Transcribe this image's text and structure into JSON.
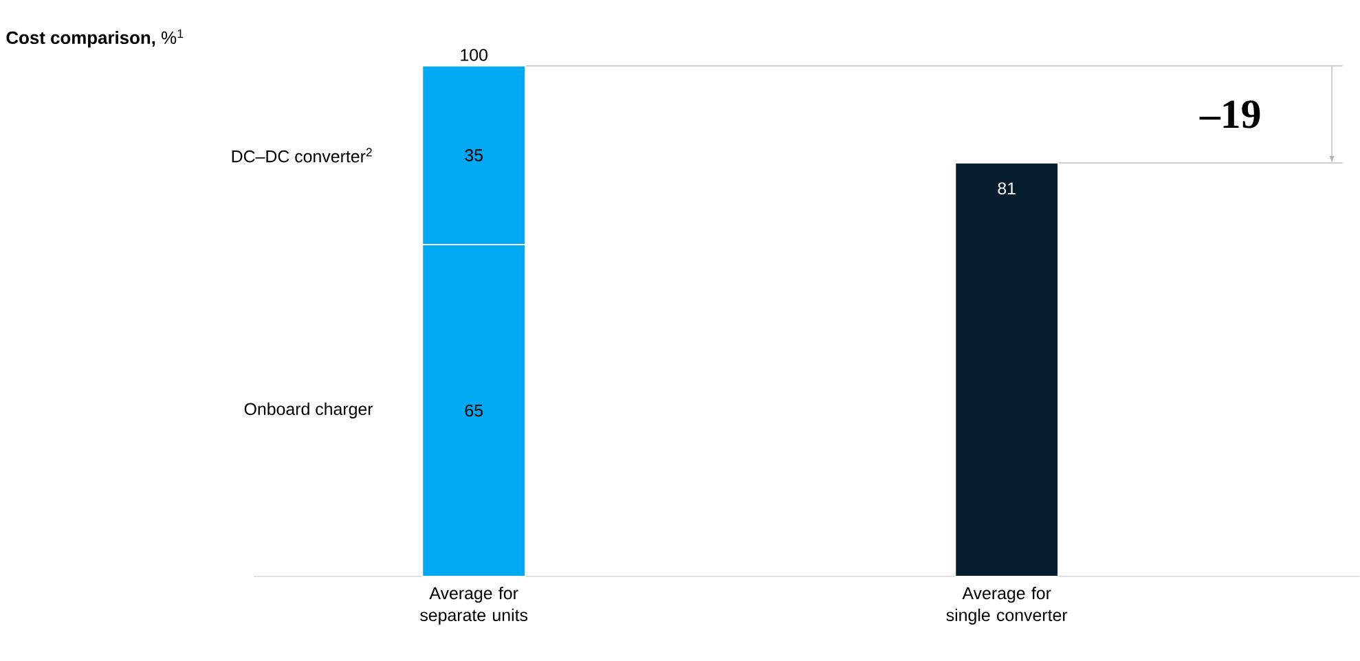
{
  "chart_data": {
    "type": "bar",
    "stacked": true,
    "title": "**Cost comparison,** %$^{1}$",
    "categories": [
      "Average for separate units",
      "Average for single converter"
    ],
    "series": [
      {
        "name": "Onboard charger",
        "color": "#00a9f4",
        "values": [
          65,
          null
        ],
        "value_labels": [
          "65",
          null
        ]
      },
      {
        "name": "DC–DC converter$^{2}$",
        "color": "#00a9f4",
        "values": [
          35,
          null
        ],
        "value_labels": [
          "35",
          null
        ]
      },
      {
        "color": "#051c2c",
        "values": [
          null,
          81
        ],
        "value_labels": [
          null,
          "81"
        ]
      }
    ],
    "totals": [
      "100",
      null
    ],
    "ref_lines": [
      {
        "axis": "y",
        "value": 100,
        "color": "#b2b2b2"
      },
      {
        "axis": "y",
        "value": 81,
        "color": "#b2b2b2"
      }
    ],
    "annotations": [
      "–19"
    ]
  }
}
